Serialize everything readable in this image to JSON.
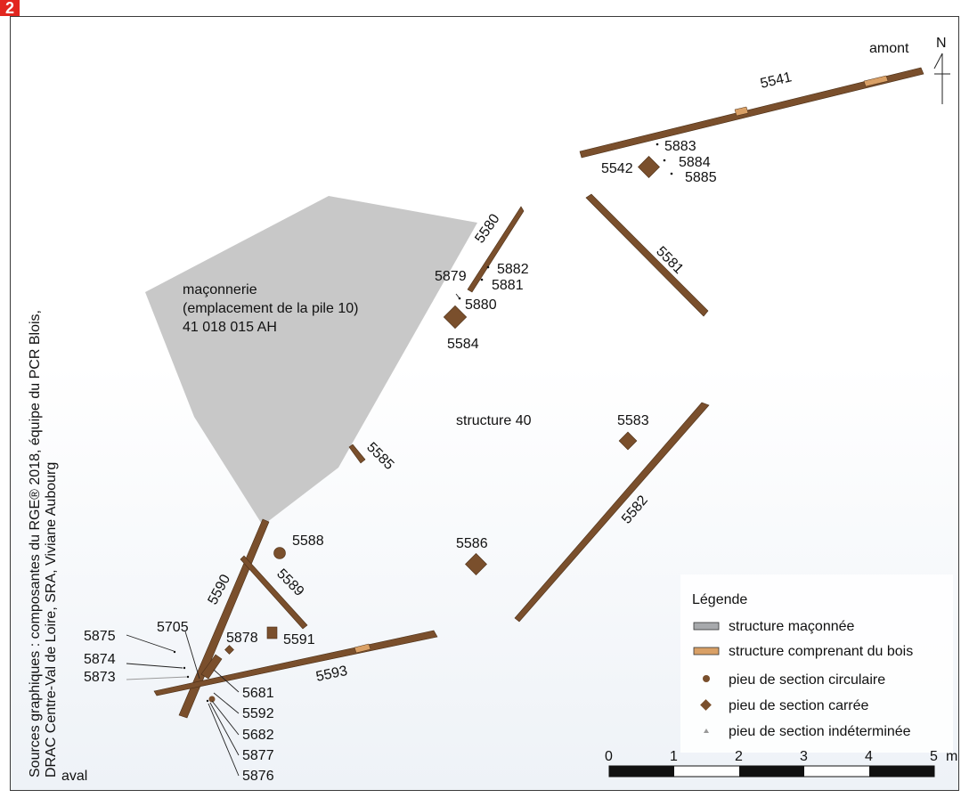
{
  "figure_label": "2",
  "north": "N",
  "upstream": "amont",
  "downstream": "aval",
  "source_credit_line1": "Sources graphiques : composantes du RGE® 2018, équipe du PCR Blois,",
  "source_credit_line2": "DRAC Centre-Val de Loire, SRA, Viviane Aubourg",
  "masonry": {
    "line1": "maçonnerie",
    "line2": "(emplacement de la pile 10)",
    "line3": "41 018 015 AH"
  },
  "structure_label": "structure 40",
  "labels": {
    "l5541": "5541",
    "l5542": "5542",
    "l5883": "5883",
    "l5884": "5884",
    "l5885": "5885",
    "l5580": "5580",
    "l5581": "5581",
    "l5879": "5879",
    "l5882": "5882",
    "l5881": "5881",
    "l5880": "5880",
    "l5584": "5584",
    "l5583": "5583",
    "l5582": "5582",
    "l5585": "5585",
    "l5586": "5586",
    "l5588": "5588",
    "l5589": "5589",
    "l5590": "5590",
    "l5591": "5591",
    "l5878": "5878",
    "l5705": "5705",
    "l5875": "5875",
    "l5874": "5874",
    "l5873": "5873",
    "l5593": "5593",
    "l5681": "5681",
    "l5592": "5592",
    "l5682": "5682",
    "l5877": "5877",
    "l5876": "5876"
  },
  "legend": {
    "title": "Légende",
    "items": [
      {
        "label": "structure maçonnée",
        "color": "#a7a9ac"
      },
      {
        "label": "structure comprenant du bois",
        "color": "#d9a066"
      },
      {
        "label": "pieu de section circulaire",
        "color": "#7a4f2c"
      },
      {
        "label": "pieu de section carrée",
        "color": "#7a4f2c"
      },
      {
        "label": "pieu de section indéterminée",
        "color": "#999999"
      }
    ]
  },
  "scale_bar": {
    "ticks": [
      "0",
      "1",
      "2",
      "3",
      "4",
      "5"
    ],
    "unit": "m"
  },
  "colors": {
    "wood": "#7a4f2c",
    "wood_light": "#d9a066",
    "masonry": "#c8c8c8"
  }
}
